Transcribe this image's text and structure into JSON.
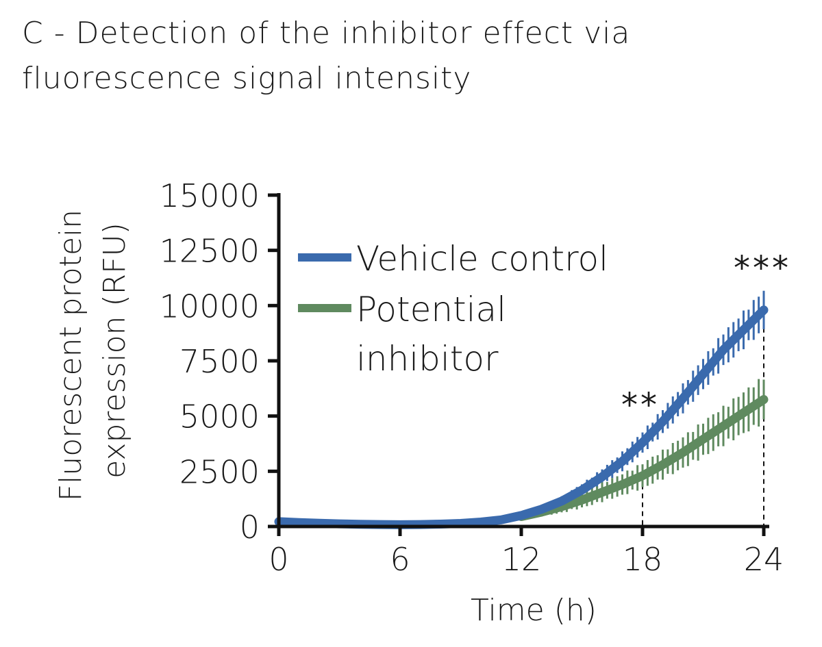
{
  "title_lines": [
    "C - Detection of the inhibitor effect via",
    "fluorescence signal intensity"
  ],
  "chart_data": {
    "type": "line",
    "title": "C - Detection of the inhibitor effect via fluorescence signal intensity",
    "xlabel": "Time (h)",
    "ylabel_lines": [
      "Fluorescent protein",
      "expression (RFU)"
    ],
    "xlim": [
      0,
      24
    ],
    "ylim": [
      0,
      15000
    ],
    "x_ticks": [
      0,
      6,
      12,
      18,
      24
    ],
    "y_ticks": [
      0,
      2500,
      5000,
      7500,
      10000,
      12500,
      15000
    ],
    "x_tick_labels": [
      "0",
      "6",
      "12",
      "18",
      "24"
    ],
    "y_tick_labels": [
      "0",
      "2500",
      "5000",
      "7500",
      "10000",
      "12500",
      "15000"
    ],
    "legend": {
      "placement": "top-left",
      "entries": [
        {
          "label_lines": [
            "Vehicle control"
          ],
          "color": "#3a6aad"
        },
        {
          "label_lines": [
            "Potential",
            "inhibitor"
          ],
          "color": "#5f8a5f"
        }
      ]
    },
    "series": [
      {
        "name": "Vehicle control",
        "color": "#3a6aad",
        "x": [
          0,
          1,
          2,
          3,
          4,
          5,
          6,
          7,
          8,
          9,
          10,
          11,
          12,
          13,
          14,
          15,
          16,
          17,
          18,
          19,
          20,
          21,
          22,
          23,
          24
        ],
        "y": [
          220,
          180,
          150,
          120,
          100,
          90,
          80,
          90,
          110,
          140,
          200,
          300,
          500,
          780,
          1150,
          1650,
          2250,
          2950,
          3800,
          4750,
          5800,
          6900,
          8000,
          8900,
          9800
        ],
        "error": [
          0,
          0,
          0,
          0,
          0,
          0,
          0,
          0,
          0,
          0,
          0,
          0,
          50,
          150,
          220,
          300,
          380,
          450,
          520,
          600,
          680,
          760,
          820,
          880,
          950
        ]
      },
      {
        "name": "Potential inhibitor",
        "color": "#5f8a5f",
        "x": [
          12,
          13,
          14,
          15,
          16,
          17,
          18,
          19,
          20,
          21,
          22,
          23,
          24
        ],
        "y": [
          450,
          650,
          900,
          1200,
          1550,
          1900,
          2300,
          2800,
          3350,
          3950,
          4550,
          5150,
          5750
        ],
        "error": [
          50,
          200,
          300,
          380,
          450,
          520,
          600,
          680,
          760,
          840,
          920,
          1000,
          1100
        ]
      }
    ],
    "annotations": [
      {
        "text": "**",
        "x": 18,
        "y": 5800
      },
      {
        "text": "***",
        "x": 24,
        "y": 12000
      }
    ],
    "reference_lines_x": [
      18,
      24
    ]
  }
}
